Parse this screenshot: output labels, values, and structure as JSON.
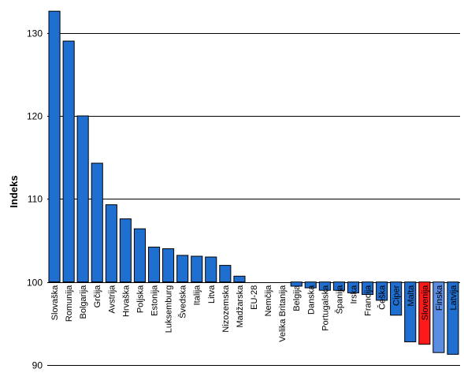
{
  "chart_data": {
    "type": "bar",
    "ylabel": "Indeks",
    "ylim": [
      90,
      133
    ],
    "baseline": 100,
    "yticks": [
      90,
      100,
      110,
      120,
      130
    ],
    "grid": true,
    "categories": [
      "Slovaška",
      "Romunija",
      "Bolgarija",
      "Grčija",
      "Avstrija",
      "Hrvaška",
      "Poljska",
      "Estonija",
      "Luksemburg",
      "Švedska",
      "Italija",
      "Litva",
      "Nizozemska",
      "Madžarska",
      "EU-28",
      "Nemčija",
      "Velika Britanija",
      "Belgija",
      "Danska",
      "Portugalska",
      "Španija",
      "Irska",
      "Francija",
      "Češka",
      "Ciper",
      "Malta",
      "Slovenija",
      "Finska",
      "Latvija"
    ],
    "values": [
      132.6,
      129.0,
      120.0,
      114.3,
      109.3,
      107.6,
      106.4,
      104.2,
      104.0,
      103.2,
      103.1,
      103.0,
      102.0,
      100.7,
      100.0,
      100.0,
      100.0,
      99.5,
      99.3,
      99.0,
      99.0,
      98.7,
      98.5,
      97.8,
      96.0,
      92.8,
      92.5,
      91.5,
      91.3
    ],
    "colors": {
      "default": "#1f6fd0",
      "Slovenija": "#ff1a1a",
      "Finska": "#5b8de3"
    }
  }
}
